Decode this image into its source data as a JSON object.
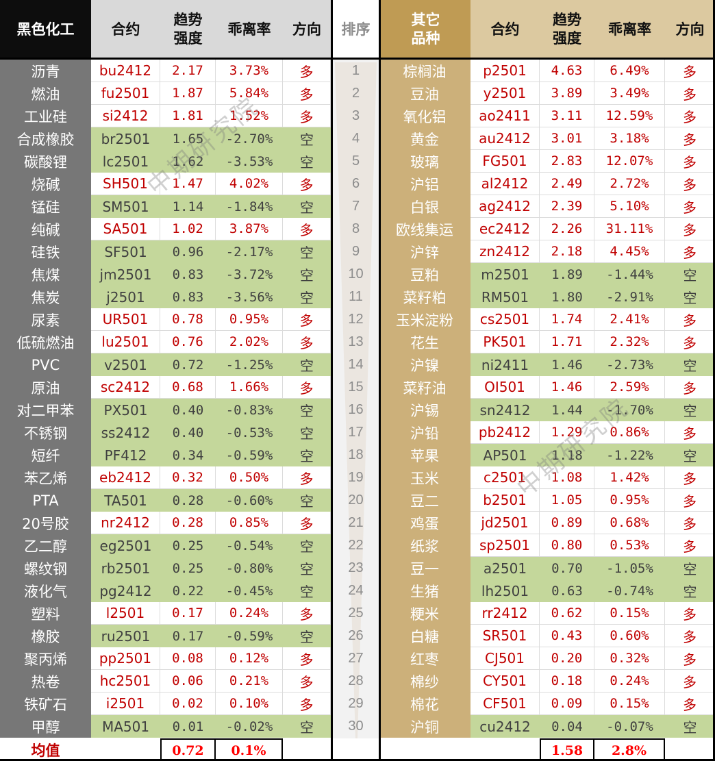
{
  "watermark": "中期研究院",
  "colors": {
    "long_text": "#c00000",
    "short_bg": "#c4d79b",
    "left_title_bg": "#0d0d0d",
    "left_header_bg": "#d9d9d9",
    "right_title_bg": "#bf9b54",
    "right_header_bg": "#dcc9a0",
    "left_name_bg": "#777777",
    "right_name_bg": "#ccb07a"
  },
  "header": {
    "left_title": "黑色化工",
    "contract": "合约",
    "strength_line1": "趋势",
    "strength_line2": "强度",
    "deviation": "乖离率",
    "direction": "方向",
    "rank": "排序",
    "right_title_line1": "其它",
    "right_title_line2": "品种"
  },
  "left": [
    {
      "name": "沥青",
      "contract": "bu2412",
      "strength": "2.17",
      "deviation": "3.73%",
      "direction": "多"
    },
    {
      "name": "燃油",
      "contract": "fu2501",
      "strength": "1.87",
      "deviation": "5.84%",
      "direction": "多"
    },
    {
      "name": "工业硅",
      "contract": "si2412",
      "strength": "1.81",
      "deviation": "1.52%",
      "direction": "多"
    },
    {
      "name": "合成橡胶",
      "contract": "br2501",
      "strength": "1.65",
      "deviation": "-2.70%",
      "direction": "空"
    },
    {
      "name": "碳酸锂",
      "contract": "lc2501",
      "strength": "1.62",
      "deviation": "-3.53%",
      "direction": "空"
    },
    {
      "name": "烧碱",
      "contract": "SH501",
      "strength": "1.47",
      "deviation": "4.02%",
      "direction": "多"
    },
    {
      "name": "锰硅",
      "contract": "SM501",
      "strength": "1.14",
      "deviation": "-1.84%",
      "direction": "空"
    },
    {
      "name": "纯碱",
      "contract": "SA501",
      "strength": "1.02",
      "deviation": "3.87%",
      "direction": "多"
    },
    {
      "name": "硅铁",
      "contract": "SF501",
      "strength": "0.96",
      "deviation": "-2.17%",
      "direction": "空"
    },
    {
      "name": "焦煤",
      "contract": "jm2501",
      "strength": "0.83",
      "deviation": "-3.72%",
      "direction": "空"
    },
    {
      "name": "焦炭",
      "contract": "j2501",
      "strength": "0.83",
      "deviation": "-3.56%",
      "direction": "空"
    },
    {
      "name": "尿素",
      "contract": "UR501",
      "strength": "0.78",
      "deviation": "0.95%",
      "direction": "多"
    },
    {
      "name": "低硫燃油",
      "contract": "lu2501",
      "strength": "0.76",
      "deviation": "2.02%",
      "direction": "多"
    },
    {
      "name": "PVC",
      "contract": "v2501",
      "strength": "0.72",
      "deviation": "-1.25%",
      "direction": "空"
    },
    {
      "name": "原油",
      "contract": "sc2412",
      "strength": "0.68",
      "deviation": "1.66%",
      "direction": "多"
    },
    {
      "name": "对二甲苯",
      "contract": "PX501",
      "strength": "0.40",
      "deviation": "-0.83%",
      "direction": "空"
    },
    {
      "name": "不锈钢",
      "contract": "ss2412",
      "strength": "0.40",
      "deviation": "-0.53%",
      "direction": "空"
    },
    {
      "name": "短纤",
      "contract": "PF412",
      "strength": "0.34",
      "deviation": "-0.59%",
      "direction": "空"
    },
    {
      "name": "苯乙烯",
      "contract": "eb2412",
      "strength": "0.32",
      "deviation": "0.50%",
      "direction": "多"
    },
    {
      "name": "PTA",
      "contract": "TA501",
      "strength": "0.28",
      "deviation": "-0.60%",
      "direction": "空"
    },
    {
      "name": "20号胶",
      "contract": "nr2412",
      "strength": "0.28",
      "deviation": "0.85%",
      "direction": "多"
    },
    {
      "name": "乙二醇",
      "contract": "eg2501",
      "strength": "0.25",
      "deviation": "-0.54%",
      "direction": "空"
    },
    {
      "name": "螺纹钢",
      "contract": "rb2501",
      "strength": "0.25",
      "deviation": "-0.80%",
      "direction": "空"
    },
    {
      "name": "液化气",
      "contract": "pg2412",
      "strength": "0.22",
      "deviation": "-0.45%",
      "direction": "空"
    },
    {
      "name": "塑料",
      "contract": "l2501",
      "strength": "0.17",
      "deviation": "0.24%",
      "direction": "多"
    },
    {
      "name": "橡胶",
      "contract": "ru2501",
      "strength": "0.17",
      "deviation": "-0.59%",
      "direction": "空"
    },
    {
      "name": "聚丙烯",
      "contract": "pp2501",
      "strength": "0.08",
      "deviation": "0.12%",
      "direction": "多"
    },
    {
      "name": "热卷",
      "contract": "hc2501",
      "strength": "0.06",
      "deviation": "0.21%",
      "direction": "多"
    },
    {
      "name": "铁矿石",
      "contract": "i2501",
      "strength": "0.02",
      "deviation": "0.10%",
      "direction": "多"
    },
    {
      "name": "甲醇",
      "contract": "MA501",
      "strength": "0.01",
      "deviation": "-0.02%",
      "direction": "空"
    }
  ],
  "right": [
    {
      "name": "棕榈油",
      "contract": "p2501",
      "strength": "4.63",
      "deviation": "6.49%",
      "direction": "多"
    },
    {
      "name": "豆油",
      "contract": "y2501",
      "strength": "3.89",
      "deviation": "3.49%",
      "direction": "多"
    },
    {
      "name": "氧化铝",
      "contract": "ao2411",
      "strength": "3.11",
      "deviation": "12.59%",
      "direction": "多"
    },
    {
      "name": "黄金",
      "contract": "au2412",
      "strength": "3.01",
      "deviation": "3.18%",
      "direction": "多"
    },
    {
      "name": "玻璃",
      "contract": "FG501",
      "strength": "2.83",
      "deviation": "12.07%",
      "direction": "多"
    },
    {
      "name": "沪铝",
      "contract": "al2412",
      "strength": "2.49",
      "deviation": "2.72%",
      "direction": "多"
    },
    {
      "name": "白银",
      "contract": "ag2412",
      "strength": "2.39",
      "deviation": "5.10%",
      "direction": "多"
    },
    {
      "name": "欧线集运",
      "contract": "ec2412",
      "strength": "2.26",
      "deviation": "31.11%",
      "direction": "多"
    },
    {
      "name": "沪锌",
      "contract": "zn2412",
      "strength": "2.18",
      "deviation": "4.45%",
      "direction": "多"
    },
    {
      "name": "豆粕",
      "contract": "m2501",
      "strength": "1.89",
      "deviation": "-1.44%",
      "direction": "空"
    },
    {
      "name": "菜籽粕",
      "contract": "RM501",
      "strength": "1.80",
      "deviation": "-2.91%",
      "direction": "空"
    },
    {
      "name": "玉米淀粉",
      "contract": "cs2501",
      "strength": "1.74",
      "deviation": "2.41%",
      "direction": "多"
    },
    {
      "name": "花生",
      "contract": "PK501",
      "strength": "1.71",
      "deviation": "2.32%",
      "direction": "多"
    },
    {
      "name": "沪镍",
      "contract": "ni2411",
      "strength": "1.46",
      "deviation": "-2.73%",
      "direction": "空"
    },
    {
      "name": "菜籽油",
      "contract": "OI501",
      "strength": "1.46",
      "deviation": "2.59%",
      "direction": "多"
    },
    {
      "name": "沪锡",
      "contract": "sn2412",
      "strength": "1.44",
      "deviation": "-1.70%",
      "direction": "空"
    },
    {
      "name": "沪铅",
      "contract": "pb2412",
      "strength": "1.29",
      "deviation": "0.86%",
      "direction": "多"
    },
    {
      "name": "苹果",
      "contract": "AP501",
      "strength": "1.18",
      "deviation": "-1.22%",
      "direction": "空"
    },
    {
      "name": "玉米",
      "contract": "c2501",
      "strength": "1.08",
      "deviation": "1.42%",
      "direction": "多"
    },
    {
      "name": "豆二",
      "contract": "b2501",
      "strength": "1.05",
      "deviation": "0.95%",
      "direction": "多"
    },
    {
      "name": "鸡蛋",
      "contract": "jd2501",
      "strength": "0.89",
      "deviation": "0.68%",
      "direction": "多"
    },
    {
      "name": "纸浆",
      "contract": "sp2501",
      "strength": "0.80",
      "deviation": "0.53%",
      "direction": "多"
    },
    {
      "name": "豆一",
      "contract": "a2501",
      "strength": "0.70",
      "deviation": "-1.05%",
      "direction": "空"
    },
    {
      "name": "生猪",
      "contract": "lh2501",
      "strength": "0.63",
      "deviation": "-0.74%",
      "direction": "空"
    },
    {
      "name": "粳米",
      "contract": "rr2412",
      "strength": "0.62",
      "deviation": "0.15%",
      "direction": "多"
    },
    {
      "name": "白糖",
      "contract": "SR501",
      "strength": "0.43",
      "deviation": "0.60%",
      "direction": "多"
    },
    {
      "name": "红枣",
      "contract": "CJ501",
      "strength": "0.20",
      "deviation": "0.32%",
      "direction": "多"
    },
    {
      "name": "棉纱",
      "contract": "CY501",
      "strength": "0.18",
      "deviation": "0.24%",
      "direction": "多"
    },
    {
      "name": "棉花",
      "contract": "CF501",
      "strength": "0.09",
      "deviation": "0.15%",
      "direction": "多"
    },
    {
      "name": "沪铜",
      "contract": "cu2412",
      "strength": "0.04",
      "deviation": "-0.07%",
      "direction": "空"
    }
  ],
  "ranks": [
    "1",
    "2",
    "3",
    "4",
    "5",
    "6",
    "7",
    "8",
    "9",
    "10",
    "11",
    "12",
    "13",
    "14",
    "15",
    "16",
    "17",
    "18",
    "19",
    "20",
    "21",
    "22",
    "23",
    "24",
    "25",
    "26",
    "27",
    "28",
    "29",
    "30"
  ],
  "mean": {
    "label": "均值",
    "left_strength": "0.72",
    "left_deviation": "0.1%",
    "right_strength": "1.58",
    "right_deviation": "2.8%"
  }
}
